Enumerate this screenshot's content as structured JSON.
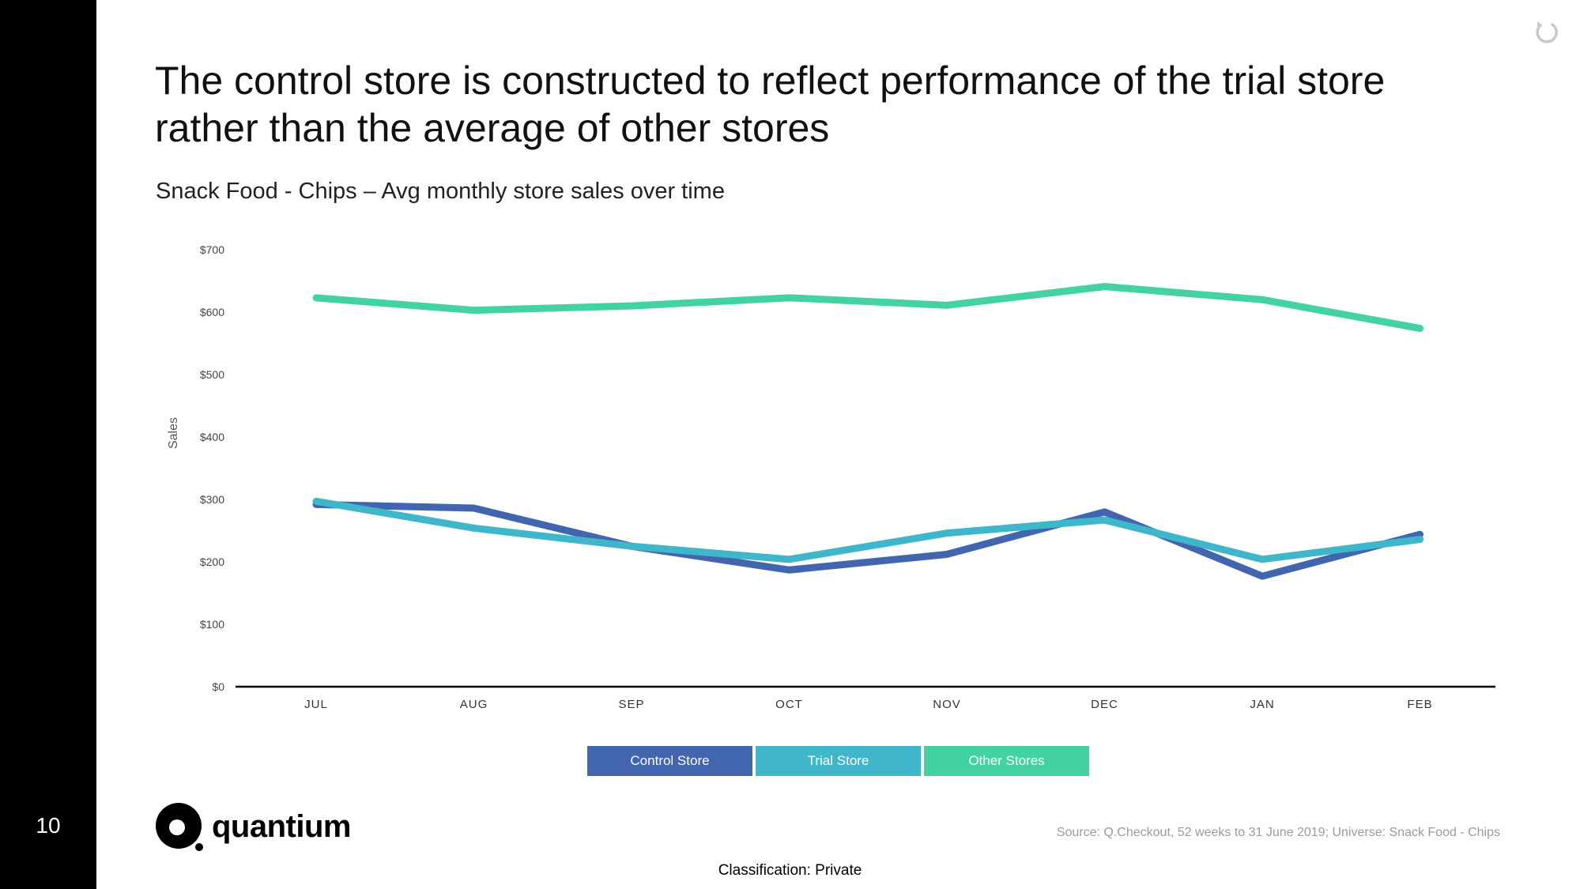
{
  "slide": {
    "page_number": "10",
    "title": "The control store is constructed to reflect performance of the trial store rather than the average of other stores",
    "subtitle": "Snack Food - Chips – Avg monthly store sales over time",
    "source": "Source: Q.Checkout, 52 weeks to 31 June 2019; Universe: Snack Food - Chips",
    "classification": "Classification: Private",
    "logo_text": "quantium",
    "icons": {
      "refresh": "refresh-icon",
      "logo": "quantium-logo-icon"
    }
  },
  "chart_data": {
    "type": "line",
    "title": "",
    "xlabel": "",
    "ylabel": "Sales",
    "categories": [
      "JUL",
      "AUG",
      "SEP",
      "OCT",
      "NOV",
      "DEC",
      "JAN",
      "FEB"
    ],
    "ylim": [
      0,
      700
    ],
    "yticks": [
      0,
      100,
      200,
      300,
      400,
      500,
      600,
      700
    ],
    "ytick_labels": [
      "$0",
      "$100",
      "$200",
      "$300",
      "$400",
      "$500",
      "$600",
      "$700"
    ],
    "grid": false,
    "legend_position": "bottom",
    "series": [
      {
        "name": "Control Store",
        "color": "#4166ae",
        "values": [
          292,
          286,
          225,
          187,
          212,
          280,
          177,
          244
        ]
      },
      {
        "name": "Trial Store",
        "color": "#3fb6c9",
        "values": [
          297,
          254,
          225,
          204,
          246,
          267,
          204,
          236
        ]
      },
      {
        "name": "Other Stores",
        "color": "#42d3a0",
        "values": [
          623,
          603,
          610,
          623,
          611,
          641,
          620,
          574
        ]
      }
    ]
  }
}
